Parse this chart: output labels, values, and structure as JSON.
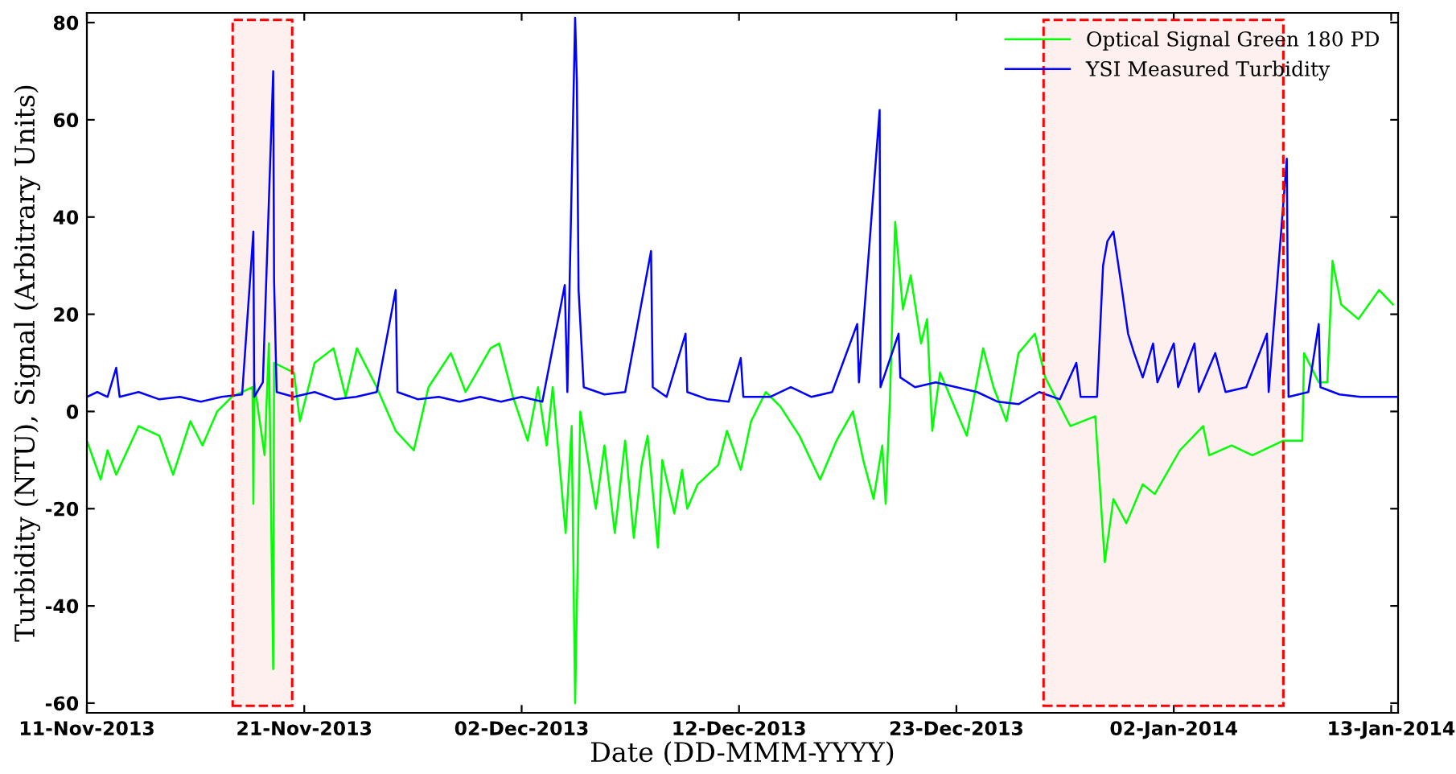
{
  "chart_data": {
    "type": "line",
    "xlabel": "Date (DD-MMM-YYYY)",
    "ylabel": "Turbidity (NTU), Signal (Arbitrary Units)",
    "xlim": [
      "2013-11-11T00:00",
      "2014-01-13T08:00"
    ],
    "xticks": [
      {
        "value": "2013-11-11T00:00",
        "label": "11-Nov-2013"
      },
      {
        "value": "2013-11-21T12:00",
        "label": "21-Nov-2013"
      },
      {
        "value": "2013-12-02T00:00",
        "label": "02-Dec-2013"
      },
      {
        "value": "2013-12-12T12:00",
        "label": "12-Dec-2013"
      },
      {
        "value": "2013-12-23T00:00",
        "label": "23-Dec-2013"
      },
      {
        "value": "2014-01-02T12:00",
        "label": "02-Jan-2014"
      },
      {
        "value": "2014-01-13T00:00",
        "label": "13-Jan-2014"
      }
    ],
    "ylim": [
      -62,
      82
    ],
    "yticks": [
      -60,
      -40,
      -20,
      0,
      20,
      40,
      60,
      80
    ],
    "grid": false,
    "legend": "top right",
    "marker": "none",
    "line_style": "solid",
    "bands": [
      {
        "axis": "x",
        "from": "2013-11-18T01:00",
        "to": "2013-11-20T22:00",
        "label": null,
        "color": "#ff0000"
      },
      {
        "axis": "x",
        "from": "2013-12-27T05:00",
        "to": "2014-01-07T19:00",
        "label": null,
        "color": "#ff0000"
      }
    ],
    "series": [
      {
        "name": "Optical Signal Green 180 PD",
        "color": "#00ff00",
        "x": [
          "2013-11-11T00:00",
          "2013-11-11T16:00",
          "2013-11-12T00:00",
          "2013-11-12T10:00",
          "2013-11-13T12:00",
          "2013-11-14T12:00",
          "2013-11-15T04:00",
          "2013-11-16T00:00",
          "2013-11-16T14:00",
          "2013-11-17T07:00",
          "2013-11-18T00:00",
          "2013-11-19T00:00",
          "2013-11-19T01:00",
          "2013-11-19T02:00",
          "2013-11-19T14:00",
          "2013-11-19T19:00",
          "2013-11-20T00:00",
          "2013-11-20T01:00",
          "2013-11-21T00:00",
          "2013-11-21T07:00",
          "2013-11-22T00:00",
          "2013-11-22T22:00",
          "2013-11-23T12:00",
          "2013-11-24T01:00",
          "2013-11-25T00:00",
          "2013-11-25T22:00",
          "2013-11-26T19:00",
          "2013-11-27T12:00",
          "2013-11-28T14:00",
          "2013-11-29T07:00",
          "2013-11-30T12:00",
          "2013-11-30T22:00",
          "2013-12-01T14:00",
          "2013-12-02T07:00",
          "2013-12-02T19:00",
          "2013-12-03T05:00",
          "2013-12-03T12:00",
          "2013-12-04T03:00",
          "2013-12-04T10:00",
          "2013-12-04T14:00",
          "2013-12-04T20:00",
          "2013-12-05T14:00",
          "2013-12-06T00:00",
          "2013-12-06T12:00",
          "2013-12-07T00:00",
          "2013-12-07T10:00",
          "2013-12-07T19:00",
          "2013-12-08T02:00",
          "2013-12-08T14:00",
          "2013-12-08T19:00",
          "2013-12-09T09:00",
          "2013-12-09T18:00",
          "2013-12-10T00:00",
          "2013-12-10T12:00",
          "2013-12-11T12:00",
          "2013-12-11T22:00",
          "2013-12-12T14:00",
          "2013-12-13T02:00",
          "2013-12-13T19:00",
          "2013-12-14T12:00",
          "2013-12-15T10:00",
          "2013-12-16T10:00",
          "2013-12-17T05:00",
          "2013-12-18T00:00",
          "2013-12-18T12:00",
          "2013-12-19T00:00",
          "2013-12-19T10:00",
          "2013-12-19T14:00",
          "2013-12-19T19:00",
          "2013-12-20T01:00",
          "2013-12-20T10:00",
          "2013-12-20T19:00",
          "2013-12-21T07:00",
          "2013-12-21T14:00",
          "2013-12-21T20:00",
          "2013-12-22T05:00",
          "2013-12-23T12:00",
          "2013-12-24T07:00",
          "2013-12-24T19:00",
          "2013-12-25T10:00",
          "2013-12-26T00:00",
          "2013-12-26T19:00",
          "2013-12-27T07:00",
          "2013-12-28T12:00",
          "2013-12-29T17:00",
          "2013-12-30T04:00",
          "2013-12-30T14:00",
          "2013-12-31T05:00",
          "2014-01-01T00:00",
          "2014-01-01T14:00",
          "2014-01-02T19:00",
          "2014-01-03T22:00",
          "2014-01-04T05:00",
          "2014-01-05T07:00",
          "2014-01-06T07:00",
          "2014-01-07T19:00",
          "2014-01-08T17:00",
          "2014-01-08T19:00",
          "2014-01-09T12:00",
          "2014-01-09T22:00",
          "2014-01-10T04:00",
          "2014-01-10T14:00",
          "2014-01-11T10:00",
          "2014-01-12T10:00",
          "2014-01-13T02:00"
        ],
        "values": [
          -6,
          -14,
          -8,
          -13,
          -3,
          -5,
          -13,
          -2,
          -7,
          0,
          3,
          5,
          -19,
          6,
          -9,
          14,
          -53,
          10,
          8,
          -2,
          10,
          13,
          3,
          13,
          5,
          -4,
          -8,
          5,
          12,
          4,
          13,
          14,
          3,
          -6,
          5,
          -7,
          5,
          -25,
          -3,
          -60,
          0,
          -20,
          -7,
          -25,
          -6,
          -26,
          -11,
          -5,
          -28,
          -10,
          -21,
          -12,
          -20,
          -15,
          -11,
          -4,
          -12,
          -2,
          4,
          1,
          -5,
          -14,
          -6,
          0,
          -10,
          -18,
          -7,
          -19,
          3,
          39,
          21,
          28,
          14,
          19,
          -4,
          8,
          -5,
          13,
          5,
          -2,
          12,
          16,
          7,
          -3,
          -1,
          -31,
          -18,
          -23,
          -15,
          -17,
          -8,
          -3,
          -9,
          -7,
          -9,
          -6,
          -6,
          12,
          6,
          6,
          31,
          22,
          19,
          25,
          22
        ]
      },
      {
        "name": "YSI Measured Turbidity",
        "color": "#0000ff",
        "x": [
          "2013-11-11T00:00",
          "2013-11-11T12:00",
          "2013-11-12T00:00",
          "2013-11-12T10:00",
          "2013-11-12T14:00",
          "2013-11-13T12:00",
          "2013-11-14T12:00",
          "2013-11-15T12:00",
          "2013-11-16T12:00",
          "2013-11-17T12:00",
          "2013-11-18T12:00",
          "2013-11-19T01:00",
          "2013-11-19T02:00",
          "2013-11-19T12:00",
          "2013-11-20T00:00",
          "2013-11-20T01:00",
          "2013-11-20T04:00",
          "2013-11-21T00:00",
          "2013-11-22T00:00",
          "2013-11-23T00:00",
          "2013-11-24T00:00",
          "2013-11-25T00:00",
          "2013-11-25T22:00",
          "2013-11-26T00:00",
          "2013-11-27T00:00",
          "2013-11-28T00:00",
          "2013-11-29T00:00",
          "2013-11-30T00:00",
          "2013-12-01T00:00",
          "2013-12-02T00:00",
          "2013-12-03T00:00",
          "2013-12-04T02:00",
          "2013-12-04T05:00",
          "2013-12-04T14:00",
          "2013-12-04T16:00",
          "2013-12-04T18:00",
          "2013-12-05T00:00",
          "2013-12-06T00:00",
          "2013-12-07T00:00",
          "2013-12-08T06:00",
          "2013-12-08T08:00",
          "2013-12-09T00:00",
          "2013-12-09T22:00",
          "2013-12-10T00:00",
          "2013-12-11T00:00",
          "2013-12-12T00:00",
          "2013-12-12T14:00",
          "2013-12-12T17:00",
          "2013-12-14T00:00",
          "2013-12-15T00:00",
          "2013-12-16T00:00",
          "2013-12-17T00:00",
          "2013-12-18T05:00",
          "2013-12-18T07:00",
          "2013-12-19T07:00",
          "2013-12-19T08:00",
          "2013-12-20T05:00",
          "2013-12-20T07:00",
          "2013-12-21T00:00",
          "2013-12-22T00:00",
          "2013-12-23T00:00",
          "2013-12-24T00:00",
          "2013-12-25T00:00",
          "2013-12-26T00:00",
          "2013-12-27T00:00",
          "2013-12-28T00:00",
          "2013-12-28T19:00",
          "2013-12-29T00:00",
          "2013-12-29T19:00",
          "2013-12-30T02:00",
          "2013-12-30T07:00",
          "2013-12-30T14:00",
          "2013-12-31T00:00",
          "2013-12-31T07:00",
          "2013-12-31T14:00",
          "2014-01-01T00:00",
          "2014-01-01T12:00",
          "2014-01-01T17:00",
          "2014-01-02T12:00",
          "2014-01-02T17:00",
          "2014-01-03T12:00",
          "2014-01-03T17:00",
          "2014-01-04T12:00",
          "2014-01-05T00:00",
          "2014-01-06T00:00",
          "2014-01-07T00:00",
          "2014-01-07T02:00",
          "2014-01-07T23:00",
          "2014-01-08T01:00",
          "2014-01-09T00:00",
          "2014-01-09T12:00",
          "2014-01-09T14:00",
          "2014-01-10T12:00",
          "2014-01-11T12:00",
          "2014-01-12T12:00",
          "2014-01-13T07:00"
        ],
        "values": [
          3,
          4,
          3,
          9,
          3,
          4,
          2.5,
          3,
          2,
          3,
          3.5,
          37,
          3,
          6,
          70,
          27,
          4,
          3,
          4,
          2.5,
          3,
          4,
          25,
          4,
          2.5,
          3,
          2,
          3,
          2,
          3,
          2,
          26,
          4,
          81,
          68,
          25,
          5,
          3.5,
          4,
          33,
          5,
          3,
          16,
          4,
          2.5,
          2,
          11,
          3,
          3,
          5,
          3,
          4,
          18,
          6,
          62,
          5,
          16,
          7,
          5,
          6,
          5,
          4,
          2,
          1.5,
          4,
          2.5,
          10,
          3,
          3,
          30,
          35,
          37,
          25,
          16,
          12,
          7,
          14,
          6,
          14,
          5,
          14,
          4,
          12,
          4,
          5,
          16,
          4,
          52,
          3,
          4,
          18,
          5,
          3.5,
          3,
          3,
          3
        ]
      }
    ]
  }
}
